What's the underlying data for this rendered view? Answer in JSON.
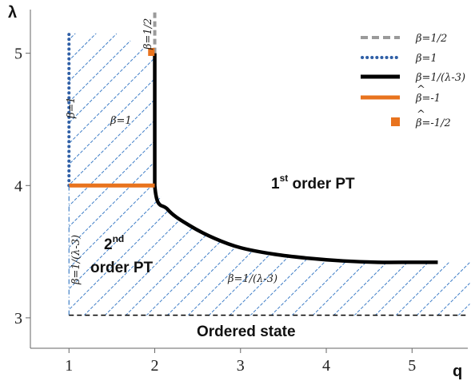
{
  "chart_data": {
    "type": "line",
    "xlabel": "q",
    "ylabel": "λ",
    "xlim": [
      0.55,
      5.65
    ],
    "ylim": [
      2.77,
      5.33
    ],
    "x_ticks": [
      "1",
      "2",
      "3",
      "4",
      "5"
    ],
    "y_ticks": [
      "3",
      "4",
      "5"
    ],
    "colors": {
      "gray": "#9a9a9a",
      "blue": "#2f5fa6",
      "black": "#000000",
      "orange": "#e8731e",
      "hatch": "#3f7ec7"
    },
    "legend": {
      "position": "top-right",
      "entries": [
        {
          "label": "β=1/2",
          "style": "gray-dashed"
        },
        {
          "label": "β=1",
          "style": "blue-dotted"
        },
        {
          "label": "β=1/(λ-3)",
          "style": "black-solid"
        },
        {
          "label": "β=-1",
          "hat": "^",
          "style": "orange-solid"
        },
        {
          "label": "β=-1/2",
          "hat": "^",
          "style": "orange-square"
        }
      ]
    },
    "series": [
      {
        "name": "β=1/2",
        "style": "gray-dashed",
        "x": [
          2,
          2
        ],
        "y": [
          5.0,
          5.33
        ]
      },
      {
        "name": "β=1",
        "style": "blue-dotted",
        "x": [
          1,
          1
        ],
        "y": [
          4.0,
          5.15
        ]
      },
      {
        "name": "β=1/(λ-3)",
        "style": "black-solid",
        "x": [
          2,
          2,
          2.15,
          2.4,
          2.7,
          3.0,
          3.4,
          3.8,
          4.2,
          4.6,
          5.0,
          5.3
        ],
        "y": [
          5.0,
          4.0,
          3.82,
          3.7,
          3.6,
          3.53,
          3.48,
          3.45,
          3.43,
          3.42,
          3.42,
          3.42
        ]
      },
      {
        "name": "β=-1",
        "style": "orange-solid",
        "x": [
          1,
          2
        ],
        "y": [
          4.0,
          4.0
        ]
      },
      {
        "name": "β=-1/2",
        "style": "orange-square",
        "x": [
          1.96
        ],
        "y": [
          5.01
        ]
      },
      {
        "name": "β=1/(λ-3)",
        "style": "blue-dashdot",
        "x": [
          1,
          1
        ],
        "y": [
          3.02,
          4.0
        ]
      },
      {
        "name": "",
        "style": "black-dashed",
        "x": [
          1,
          5.65
        ],
        "y": [
          3.02,
          3.02
        ]
      }
    ],
    "region_labels": {
      "first_order": {
        "main": "1",
        "sup": "st",
        "rest": " order PT"
      },
      "second_order": {
        "line1": "2",
        "sup": "nd",
        "line2": "order PT"
      },
      "ordered": "Ordered state"
    },
    "curve_labels": {
      "beta_half": "β=1/2",
      "beta_one_vertical": "β=1",
      "beta_one_hatched": "β=1",
      "beta_inv_vertical": "β=1/(λ-3)",
      "beta_inv_hatched": "β=1/(λ-3)"
    }
  }
}
